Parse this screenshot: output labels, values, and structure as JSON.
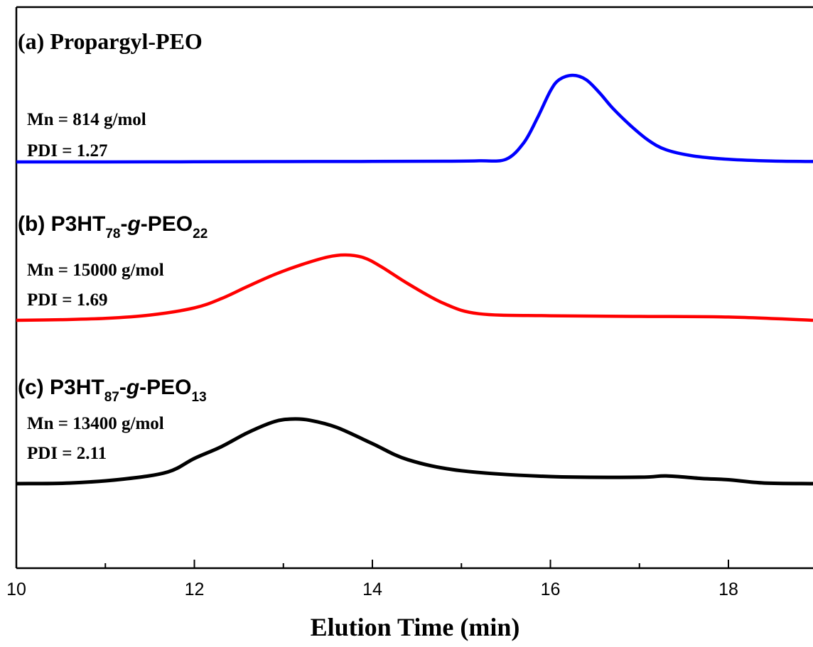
{
  "chart_data": {
    "type": "line",
    "title": "",
    "xlabel": "Elution Time (min)",
    "ylabel": "",
    "xlim": [
      10,
      18.95
    ],
    "x_ticks": [
      10,
      12,
      14,
      16,
      18
    ],
    "x_tick_labels": [
      "10",
      "12",
      "14",
      "16",
      "18"
    ],
    "y_ticks_shown": false,
    "grid": false,
    "legend": "none",
    "series": [
      {
        "name": "(a) Propargyl-PEO",
        "label": {
          "prefix": "(a) Propargyl-PEO"
        },
        "mn_text": "Mn = 814 g/mol",
        "pdi_text": "PDI = 1.27",
        "color": "#0000ff",
        "baseline": 0,
        "x": [
          10.0,
          11.0,
          12.0,
          13.0,
          14.0,
          14.8,
          15.2,
          15.5,
          15.7,
          15.85,
          16.0,
          16.1,
          16.25,
          16.4,
          16.55,
          16.7,
          16.9,
          17.1,
          17.3,
          17.6,
          18.0,
          18.5,
          18.95
        ],
        "y": [
          0.0,
          0.0,
          0.002,
          0.004,
          0.006,
          0.008,
          0.013,
          0.03,
          0.22,
          0.5,
          0.82,
          0.95,
          1.0,
          0.95,
          0.8,
          0.62,
          0.42,
          0.25,
          0.14,
          0.07,
          0.03,
          0.01,
          0.005
        ]
      },
      {
        "name": "(b) P3HT78-g-PEO22",
        "label": {
          "prefix": "(b) P3HT",
          "sub1": "78",
          "mid": "-",
          "g": "g",
          "dash": "-PEO",
          "sub2": "22"
        },
        "mn_text": "Mn = 15000 g/mol",
        "pdi_text": "PDI = 1.69",
        "color": "#ff0000",
        "baseline": 0,
        "x": [
          10.0,
          10.5,
          11.0,
          11.5,
          12.0,
          12.3,
          12.6,
          12.9,
          13.2,
          13.5,
          13.7,
          13.9,
          14.1,
          14.4,
          14.8,
          15.2,
          16.0,
          17.0,
          18.0,
          18.95
        ],
        "y": [
          0.0,
          0.01,
          0.03,
          0.08,
          0.19,
          0.33,
          0.52,
          0.7,
          0.85,
          0.97,
          1.0,
          0.96,
          0.82,
          0.56,
          0.26,
          0.1,
          0.07,
          0.06,
          0.05,
          0.0
        ]
      },
      {
        "name": "(c) P3HT87-g-PEO13",
        "label": {
          "prefix": "(c) P3HT",
          "sub1": "87",
          "mid": "-",
          "g": "g",
          "dash": "-PEO",
          "sub2": "13"
        },
        "mn_text": "Mn = 13400 g/mol",
        "pdi_text": "PDI = 2.11",
        "color": "#000000",
        "baseline": 0,
        "x": [
          10.0,
          10.6,
          11.2,
          11.7,
          12.0,
          12.3,
          12.6,
          12.9,
          13.1,
          13.3,
          13.6,
          14.0,
          14.4,
          15.0,
          16.0,
          17.0,
          17.3,
          17.7,
          18.0,
          18.4,
          18.95
        ],
        "y": [
          0.0,
          0.01,
          0.07,
          0.18,
          0.39,
          0.57,
          0.79,
          0.96,
          1.0,
          0.98,
          0.87,
          0.62,
          0.37,
          0.2,
          0.11,
          0.1,
          0.12,
          0.08,
          0.06,
          0.01,
          0.0
        ]
      }
    ]
  }
}
